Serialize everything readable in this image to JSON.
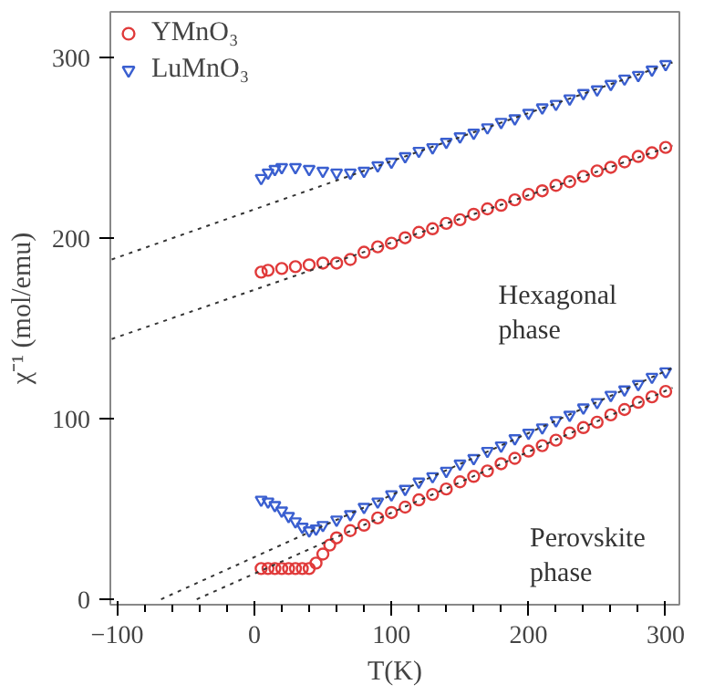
{
  "chart_data": {
    "type": "scatter",
    "xlabel": "T(K)",
    "ylabel": "χ⁻¹ (mol/emu)",
    "xlim": [
      -105,
      310
    ],
    "ylim": [
      -3,
      325
    ],
    "xticks": [
      -100,
      0,
      100,
      200,
      300
    ],
    "yticks": [
      0,
      100,
      200,
      300
    ],
    "grid": false,
    "legend": "top left",
    "series": [
      {
        "name": "YMnO₃",
        "color": "#e03a3a",
        "marker": "circle",
        "x": [
          5,
          10,
          20,
          30,
          40,
          50,
          60,
          70,
          80,
          90,
          100,
          110,
          120,
          130,
          140,
          150,
          160,
          170,
          180,
          190,
          200,
          210,
          220,
          230,
          240,
          250,
          260,
          270,
          280,
          290,
          300
        ],
        "values": [
          181,
          182,
          183,
          184,
          185,
          186,
          186,
          188,
          192,
          195,
          197,
          200,
          203,
          205,
          208,
          210,
          213,
          216,
          218,
          221,
          224,
          226,
          229,
          231,
          234,
          237,
          239,
          242,
          245,
          247,
          250
        ]
      },
      {
        "name": "LuMnO₃",
        "color": "#3a5fd0",
        "marker": "triangle",
        "x": [
          5,
          10,
          15,
          20,
          30,
          40,
          50,
          60,
          70,
          80,
          90,
          100,
          110,
          120,
          130,
          140,
          150,
          160,
          170,
          180,
          190,
          200,
          210,
          220,
          230,
          240,
          250,
          260,
          270,
          280,
          290,
          300
        ],
        "values": [
          233,
          236,
          238,
          239,
          239,
          238,
          237,
          236,
          236,
          237,
          240,
          242,
          245,
          248,
          250,
          253,
          256,
          258,
          261,
          264,
          266,
          269,
          272,
          274,
          277,
          280,
          282,
          285,
          288,
          290,
          293,
          296
        ]
      },
      {
        "color": "#e03a3a",
        "marker": "circle",
        "x": [
          5,
          10,
          15,
          20,
          25,
          30,
          35,
          40,
          45,
          50,
          55,
          60,
          70,
          80,
          90,
          100,
          110,
          120,
          130,
          140,
          150,
          160,
          170,
          180,
          190,
          200,
          210,
          220,
          230,
          240,
          250,
          260,
          270,
          280,
          290,
          300
        ],
        "values": [
          17,
          17,
          17,
          17,
          17,
          17,
          17,
          17,
          20,
          25,
          30,
          34,
          38,
          41,
          45,
          48,
          51,
          55,
          58,
          61,
          65,
          68,
          71,
          75,
          78,
          82,
          85,
          88,
          92,
          95,
          98,
          102,
          105,
          109,
          112,
          115
        ]
      },
      {
        "color": "#3a5fd0",
        "marker": "triangle",
        "x": [
          5,
          10,
          15,
          20,
          25,
          30,
          35,
          40,
          45,
          50,
          60,
          70,
          80,
          90,
          100,
          110,
          120,
          130,
          140,
          150,
          160,
          170,
          180,
          190,
          200,
          210,
          220,
          230,
          240,
          250,
          260,
          270,
          280,
          290,
          300
        ],
        "values": [
          55,
          54,
          52,
          49,
          46,
          43,
          40,
          38,
          39,
          41,
          44,
          47,
          51,
          54,
          58,
          61,
          65,
          68,
          71,
          75,
          78,
          82,
          85,
          89,
          92,
          95,
          99,
          102,
          106,
          109,
          113,
          116,
          119,
          123,
          126
        ]
      },
      {
        "type": "line",
        "line_style": "dotted",
        "color": "#333333",
        "marker": "none",
        "x": [
          -104,
          305
        ],
        "values": [
          188,
          297
        ]
      },
      {
        "type": "line",
        "line_style": "dotted",
        "color": "#333333",
        "marker": "none",
        "x": [
          -104,
          305
        ],
        "values": [
          144,
          251
        ]
      },
      {
        "type": "line",
        "line_style": "dotted",
        "color": "#333333",
        "marker": "none",
        "x": [
          -68,
          305
        ],
        "values": [
          0,
          128
        ]
      },
      {
        "type": "line",
        "line_style": "dotted",
        "color": "#333333",
        "marker": "none",
        "x": [
          -42,
          305
        ],
        "values": [
          0,
          117
        ]
      }
    ],
    "annotations": [
      {
        "text": "Hexagonal phase",
        "x": 170,
        "y": 216
      },
      {
        "text": "Perovskite phase",
        "x": 193,
        "y": 82
      }
    ]
  }
}
